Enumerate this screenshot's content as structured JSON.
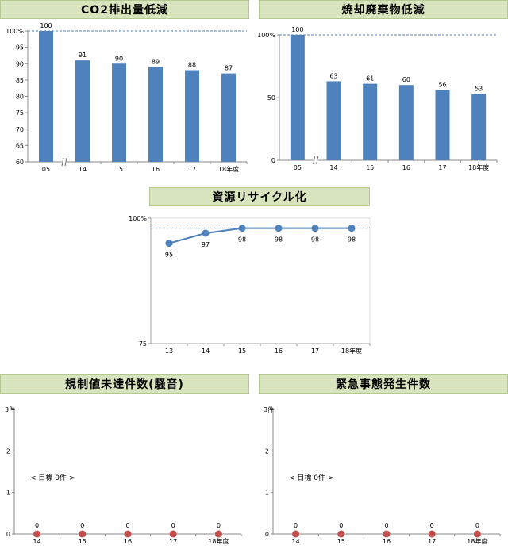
{
  "charts": [
    {
      "id": "co2",
      "title": "CO2排出量低減",
      "type": "bar",
      "color": "#4f81bd",
      "categories": [
        "05",
        "14",
        "15",
        "16",
        "17",
        "18年度"
      ],
      "values": [
        100,
        91,
        90,
        89,
        88,
        87
      ],
      "yticks": [
        "60",
        "65",
        "70",
        "75",
        "80",
        "85",
        "90",
        "95",
        "100%"
      ],
      "ylim": [
        60,
        100
      ],
      "target_line": 100,
      "axis_break": true
    },
    {
      "id": "waste",
      "title": "焼却廃棄物低減",
      "type": "bar",
      "color": "#4f81bd",
      "categories": [
        "05",
        "14",
        "15",
        "16",
        "17",
        "18年度"
      ],
      "values": [
        100,
        63,
        61,
        60,
        56,
        53
      ],
      "yticks": [
        "0",
        "50",
        "100%"
      ],
      "ylim": [
        0,
        100
      ],
      "target_line": 100,
      "axis_break": true
    },
    {
      "id": "recycle",
      "title": "資源リサイクル化",
      "type": "line",
      "color": "#4f81bd",
      "categories": [
        "13",
        "14",
        "15",
        "16",
        "17",
        "18年度"
      ],
      "values": [
        95,
        97,
        98,
        98,
        98,
        98
      ],
      "yticks": [
        "75",
        "100%"
      ],
      "ylim": [
        75,
        100
      ],
      "target_line": 98
    },
    {
      "id": "noise",
      "title": "規制値未達件数(騒音)",
      "type": "scatter",
      "color": "#c0504d",
      "categories": [
        "14",
        "15",
        "16",
        "17",
        "18年度"
      ],
      "values": [
        0,
        0,
        0,
        0,
        0
      ],
      "yticks": [
        "0",
        "1",
        "2",
        "3件"
      ],
      "ylim": [
        0,
        3
      ],
      "note": "< 目標  0件 >"
    },
    {
      "id": "emergency",
      "title": "緊急事態発生件数",
      "type": "scatter",
      "color": "#c0504d",
      "categories": [
        "14",
        "15",
        "16",
        "17",
        "18年度"
      ],
      "values": [
        0,
        0,
        0,
        0,
        0
      ],
      "yticks": [
        "0",
        "1",
        "2",
        "3件"
      ],
      "ylim": [
        0,
        3
      ],
      "note": "< 目標  0件 >"
    }
  ]
}
